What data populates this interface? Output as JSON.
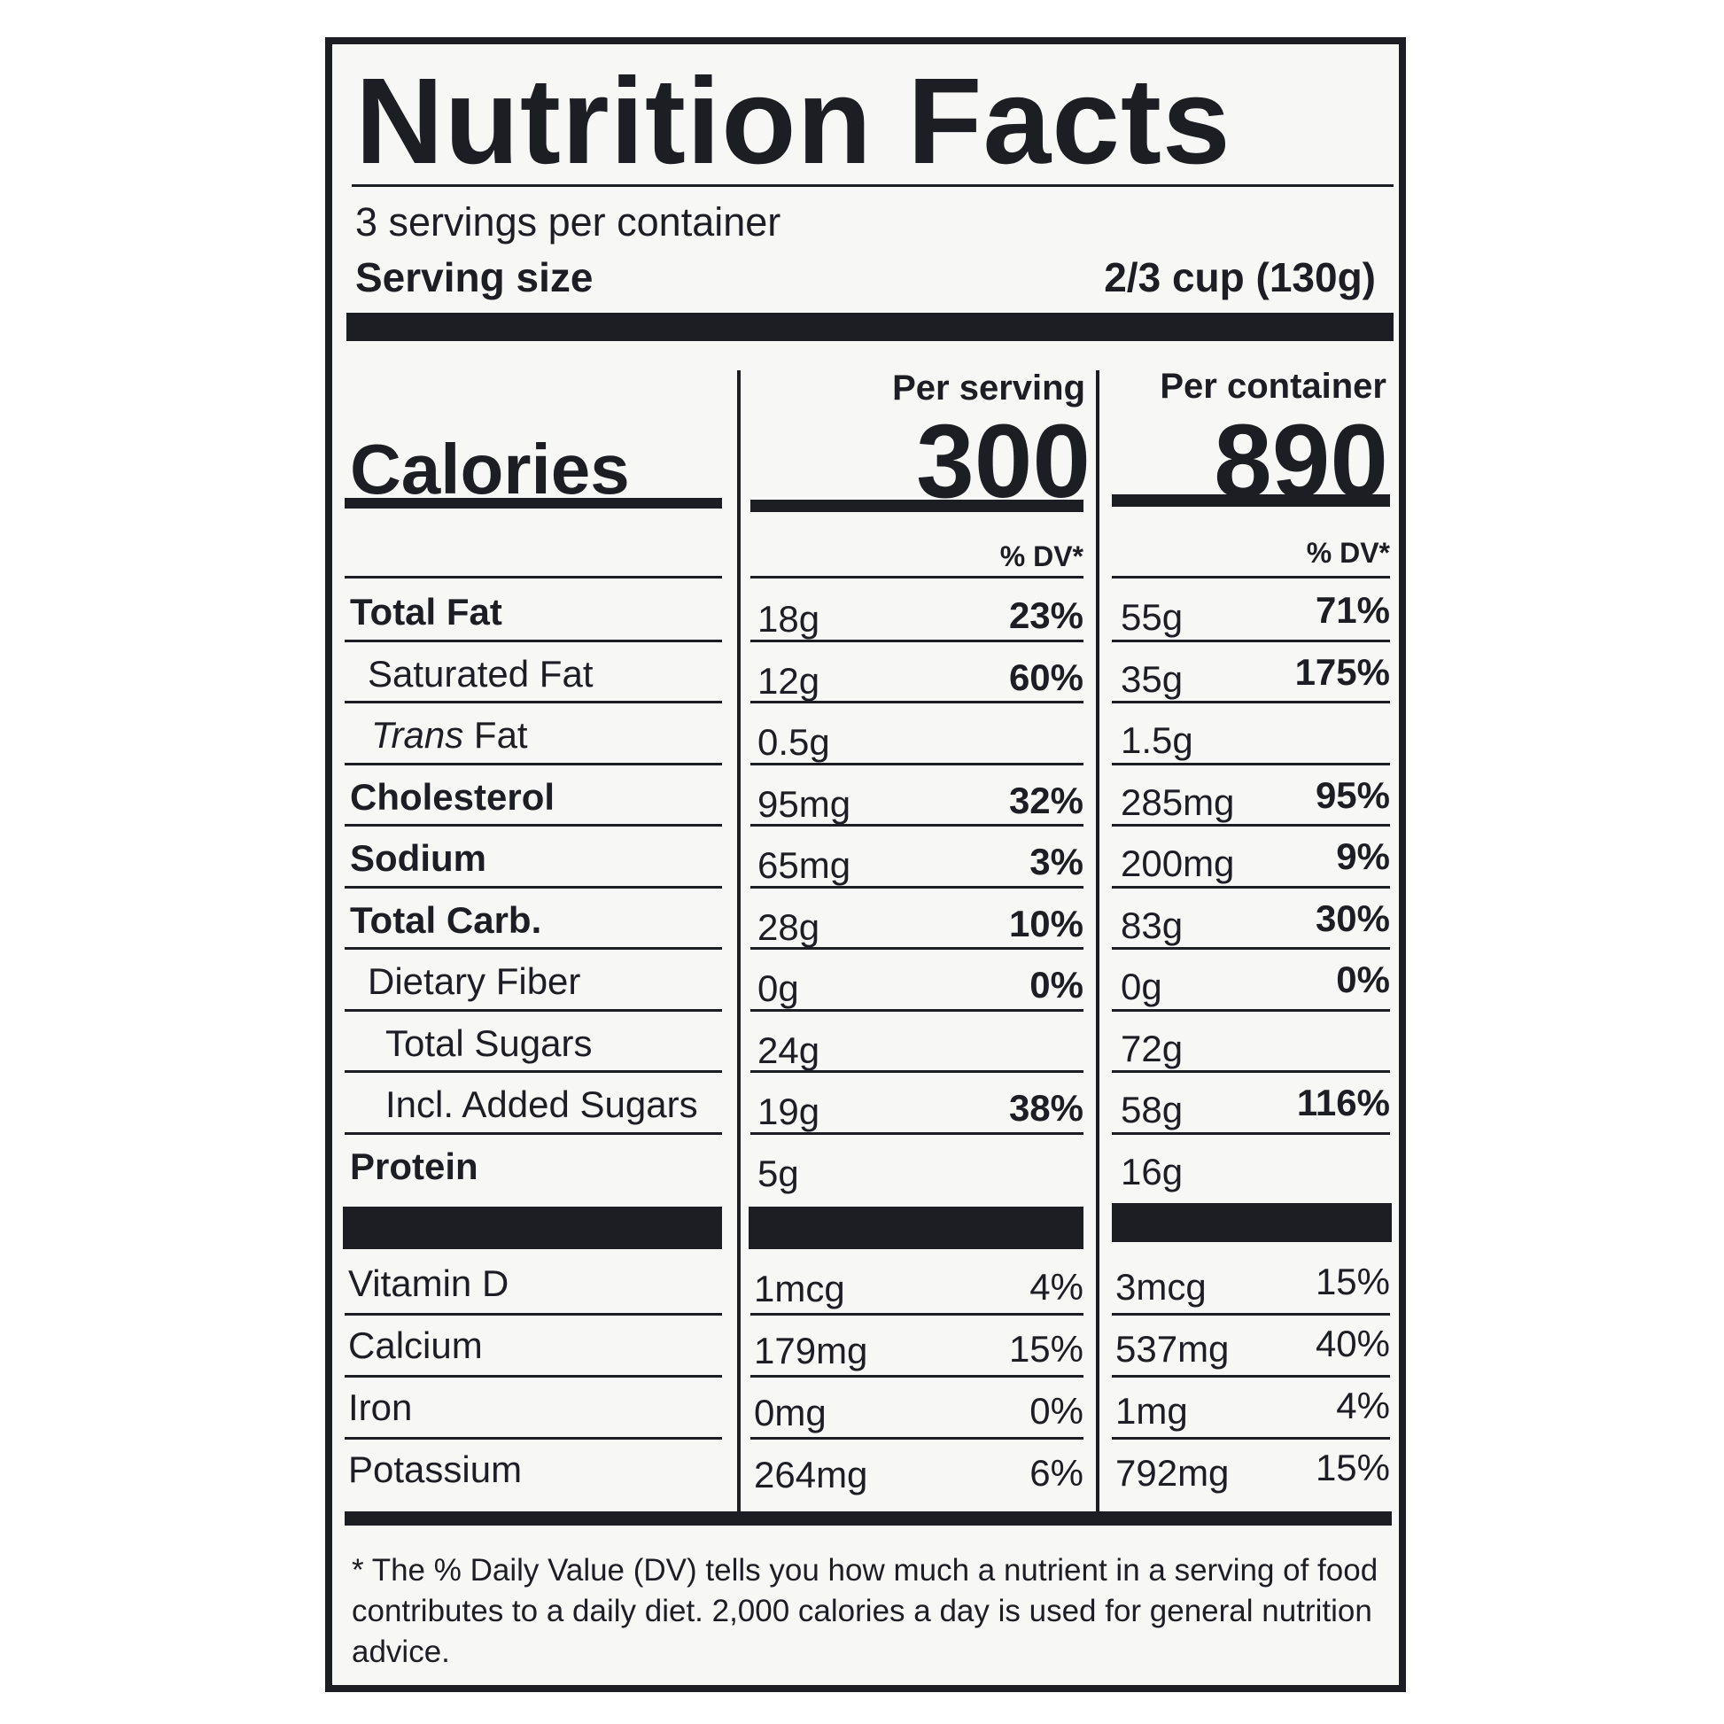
{
  "title": "Nutrition Facts",
  "servings_per_container": "3 servings per container",
  "serving_size_label": "Serving size",
  "serving_size_value": "2/3 cup (130g)",
  "per_serving_label": "Per serving",
  "per_container_label": "Per container",
  "calories_label": "Calories",
  "calories_per_serving": "300",
  "calories_per_container": "890",
  "dv_header": "% DV*",
  "nutrients": [
    {
      "name": "Total Fat",
      "serv_amt": "18g",
      "serv_dv": "23%",
      "cont_amt": "55g",
      "cont_dv": "71%"
    },
    {
      "name": "Saturated Fat",
      "serv_amt": "12g",
      "serv_dv": "60%",
      "cont_amt": "35g",
      "cont_dv": "175%"
    },
    {
      "name_italic": "Trans",
      "name": "Fat",
      "serv_amt": "0.5g",
      "serv_dv": "",
      "cont_amt": "1.5g",
      "cont_dv": ""
    },
    {
      "name": "Cholesterol",
      "serv_amt": "95mg",
      "serv_dv": "32%",
      "cont_amt": "285mg",
      "cont_dv": "95%"
    },
    {
      "name": "Sodium",
      "serv_amt": "65mg",
      "serv_dv": "3%",
      "cont_amt": "200mg",
      "cont_dv": "9%"
    },
    {
      "name": "Total Carb.",
      "serv_amt": "28g",
      "serv_dv": "10%",
      "cont_amt": "83g",
      "cont_dv": "30%"
    },
    {
      "name": "Dietary Fiber",
      "serv_amt": "0g",
      "serv_dv": "0%",
      "cont_amt": "0g",
      "cont_dv": "0%"
    },
    {
      "name": "Total Sugars",
      "serv_amt": "24g",
      "serv_dv": "",
      "cont_amt": "72g",
      "cont_dv": ""
    },
    {
      "name": "Incl. Added Sugars",
      "serv_amt": "19g",
      "serv_dv": "38%",
      "cont_amt": "58g",
      "cont_dv": "116%"
    },
    {
      "name": "Protein",
      "serv_amt": "5g",
      "serv_dv": "",
      "cont_amt": "16g",
      "cont_dv": ""
    }
  ],
  "vitamins": [
    {
      "name": "Vitamin D",
      "serv_amt": "1mcg",
      "serv_dv": "4%",
      "cont_amt": "3mcg",
      "cont_dv": "15%"
    },
    {
      "name": "Calcium",
      "serv_amt": "179mg",
      "serv_dv": "15%",
      "cont_amt": "537mg",
      "cont_dv": "40%"
    },
    {
      "name": "Iron",
      "serv_amt": "0mg",
      "serv_dv": "0%",
      "cont_amt": "1mg",
      "cont_dv": "4%"
    },
    {
      "name": "Potassium",
      "serv_amt": "264mg",
      "serv_dv": "6%",
      "cont_amt": "792mg",
      "cont_dv": "15%"
    }
  ],
  "footnote": "* The % Daily Value (DV) tells you how much a nutrient in a serving of food contributes to a daily diet. 2,000 calories a day is used for general nutrition advice."
}
